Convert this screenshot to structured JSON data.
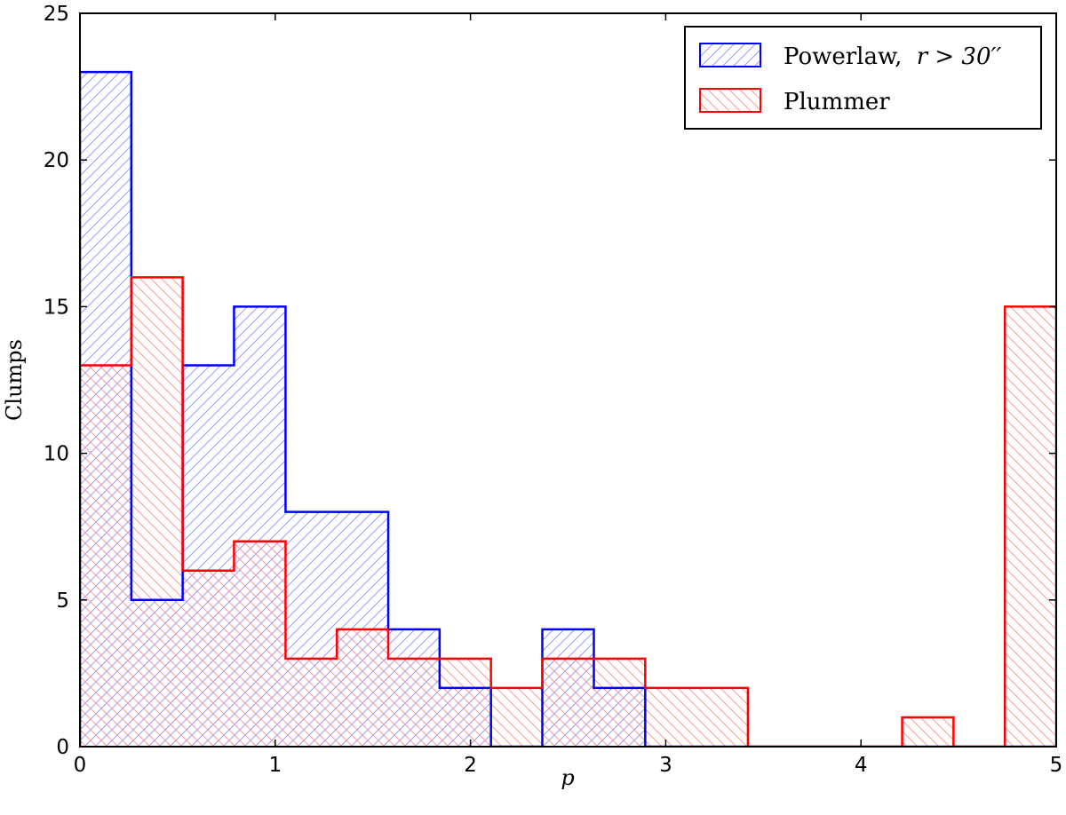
{
  "chart_data": {
    "type": "bar",
    "xlabel": "p",
    "ylabel": "Clumps",
    "xlim": [
      0,
      5
    ],
    "ylim": [
      0,
      25
    ],
    "xticks": [
      "0",
      "1",
      "2",
      "3",
      "4",
      "5"
    ],
    "yticks": [
      "0",
      "5",
      "10",
      "15",
      "20",
      "25"
    ],
    "grid": false,
    "legend_position": "top-right",
    "bin_edges": [
      0,
      0.263,
      0.526,
      0.789,
      1.053,
      1.316,
      1.579,
      1.842,
      2.105,
      2.368,
      2.632,
      2.895,
      3.158,
      3.421,
      3.684,
      3.947,
      4.211,
      4.474,
      4.737,
      5.0
    ],
    "series": [
      {
        "name": "Powerlaw, r > 30′′",
        "legend_plain": "Powerlaw,",
        "legend_math": "r > 30′′",
        "color": "#0000ff",
        "hatch": "forward",
        "values": [
          23,
          5,
          13,
          15,
          8,
          8,
          4,
          2,
          0,
          4,
          2,
          0,
          0,
          0,
          0,
          0,
          0,
          0,
          0
        ]
      },
      {
        "name": "Plummer",
        "color": "#ff0000",
        "hatch": "backward",
        "values": [
          13,
          16,
          6,
          7,
          3,
          4,
          3,
          3,
          2,
          3,
          3,
          2,
          2,
          0,
          0,
          0,
          1,
          0,
          15
        ]
      }
    ]
  }
}
